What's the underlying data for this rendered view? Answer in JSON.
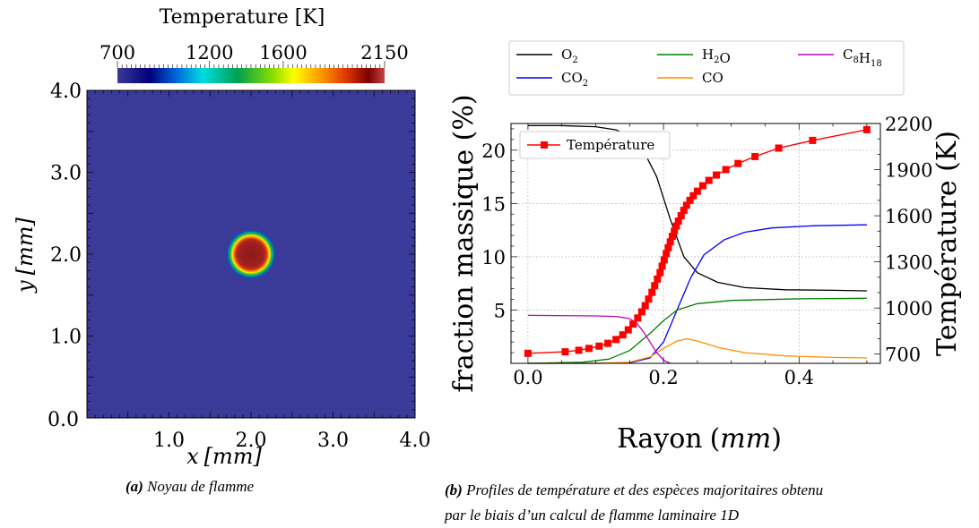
{
  "chart_data": [
    {
      "type": "heatmap",
      "colorbar": {
        "label": "Temperature [K]",
        "ticks": [
          700,
          1200,
          1600,
          2150
        ],
        "range": [
          700,
          2150
        ],
        "colormap": "jet"
      },
      "xlabel_var": "x",
      "xlabel_unit": "[mm]",
      "ylabel_var": "y",
      "ylabel_unit": "[mm]",
      "xlim": [
        0.0,
        4.0
      ],
      "ylim": [
        0.0,
        4.0
      ],
      "xticks": [
        {
          "value": 0.0,
          "label": "0.0"
        },
        {
          "value": 1.0,
          "label": "1.0"
        },
        {
          "value": 2.0,
          "label": "2.0"
        },
        {
          "value": 3.0,
          "label": "3.0"
        },
        {
          "value": 4.0,
          "label": "4.0"
        }
      ],
      "yticks": [
        {
          "value": 1.0,
          "label": "1.0"
        },
        {
          "value": 2.0,
          "label": "2.0"
        },
        {
          "value": 3.0,
          "label": "3.0"
        },
        {
          "value": 4.0,
          "label": "4.0"
        }
      ],
      "kernel": {
        "center": [
          2.0,
          2.0
        ],
        "radius": 0.3,
        "peak_temperature": 2150,
        "background_temperature": 700
      }
    },
    {
      "type": "line",
      "xlabel_text": "Rayon",
      "xlabel_unit": "mm",
      "ylabel": "fraction massique (%)",
      "ylabel2": "Température (K)",
      "xlim": [
        -0.025,
        0.52
      ],
      "ylim": [
        0,
        22.5
      ],
      "y2lim": [
        640,
        2200
      ],
      "xticks": [
        0.0,
        0.2,
        0.4
      ],
      "xtick_labels": [
        "0.0",
        "0.2",
        "0.4"
      ],
      "yticks": [
        5,
        10,
        15,
        20
      ],
      "ytick_labels": [
        "5",
        "10",
        "15",
        "20"
      ],
      "y2ticks": [
        700,
        1000,
        1300,
        1600,
        1900,
        2200
      ],
      "y2tick_labels": [
        "700",
        "1000",
        "1300",
        "1600",
        "1900",
        "2200"
      ],
      "grid": true,
      "legend_position": "top (outside, above plot)",
      "series": [
        {
          "name": "O",
          "sub": "2",
          "color": "#000000",
          "x": [
            0.0,
            0.05,
            0.1,
            0.13,
            0.15,
            0.17,
            0.19,
            0.21,
            0.23,
            0.25,
            0.28,
            0.32,
            0.38,
            0.45,
            0.5
          ],
          "y": [
            22.3,
            22.3,
            22.2,
            21.9,
            21.3,
            20.0,
            17.5,
            13.5,
            10.0,
            8.5,
            7.6,
            7.1,
            6.9,
            6.85,
            6.8
          ]
        },
        {
          "name": "CO",
          "sub": "2",
          "color": "#0000ff",
          "x": [
            0.0,
            0.1,
            0.15,
            0.18,
            0.2,
            0.22,
            0.24,
            0.26,
            0.29,
            0.32,
            0.36,
            0.42,
            0.5
          ],
          "y": [
            0.0,
            0.0,
            0.05,
            0.5,
            2.0,
            5.0,
            8.0,
            10.2,
            11.6,
            12.3,
            12.7,
            12.9,
            13.0
          ]
        },
        {
          "name": "H",
          "sub": "2",
          "name_tail": "O",
          "color": "#008000",
          "x": [
            0.0,
            0.08,
            0.12,
            0.15,
            0.18,
            0.2,
            0.22,
            0.25,
            0.3,
            0.4,
            0.5
          ],
          "y": [
            0.0,
            0.1,
            0.4,
            1.2,
            2.8,
            4.0,
            5.0,
            5.6,
            5.9,
            6.05,
            6.1
          ]
        },
        {
          "name": "CO",
          "color": "#ff8c00",
          "x": [
            0.0,
            0.1,
            0.15,
            0.18,
            0.2,
            0.22,
            0.235,
            0.25,
            0.28,
            0.32,
            0.38,
            0.45,
            0.5
          ],
          "y": [
            0.0,
            0.0,
            0.1,
            0.6,
            1.4,
            2.1,
            2.3,
            2.1,
            1.5,
            1.0,
            0.7,
            0.55,
            0.5
          ]
        },
        {
          "name": "C",
          "sub": "8",
          "name_mid": "H",
          "sub2": "18",
          "color": "#c000c0",
          "x": [
            0.0,
            0.1,
            0.13,
            0.15,
            0.16,
            0.17,
            0.18,
            0.19,
            0.2,
            0.21
          ],
          "y": [
            4.5,
            4.45,
            4.4,
            4.2,
            3.8,
            3.0,
            2.0,
            1.0,
            0.3,
            0.0
          ]
        },
        {
          "name": "Température",
          "color": "#ff0000",
          "axis": "right",
          "marker": "square",
          "x": [
            0.0,
            0.055,
            0.075,
            0.09,
            0.105,
            0.118,
            0.13,
            0.14,
            0.148,
            0.155,
            0.162,
            0.168,
            0.173,
            0.178,
            0.183,
            0.187,
            0.191,
            0.195,
            0.198,
            0.201,
            0.204,
            0.207,
            0.21,
            0.213,
            0.216,
            0.219,
            0.222,
            0.226,
            0.23,
            0.234,
            0.239,
            0.244,
            0.25,
            0.258,
            0.267,
            0.278,
            0.292,
            0.31,
            0.335,
            0.37,
            0.42,
            0.5
          ],
          "y": [
            705,
            715,
            725,
            737,
            752,
            770,
            795,
            825,
            858,
            895,
            935,
            975,
            1015,
            1058,
            1102,
            1145,
            1188,
            1230,
            1272,
            1313,
            1353,
            1392,
            1430,
            1466,
            1500,
            1533,
            1565,
            1600,
            1635,
            1668,
            1700,
            1730,
            1760,
            1795,
            1830,
            1865,
            1900,
            1940,
            1985,
            2040,
            2090,
            2160
          ]
        }
      ]
    }
  ],
  "captions": {
    "a_tag": "(a)",
    "a_text": "Noyau de flamme",
    "b_tag": "(b)",
    "b_line1": "Profiles de température et des espèces majoritaires obtenu",
    "b_line2": "par le biais d’un calcul de flamme laminaire 1D"
  }
}
